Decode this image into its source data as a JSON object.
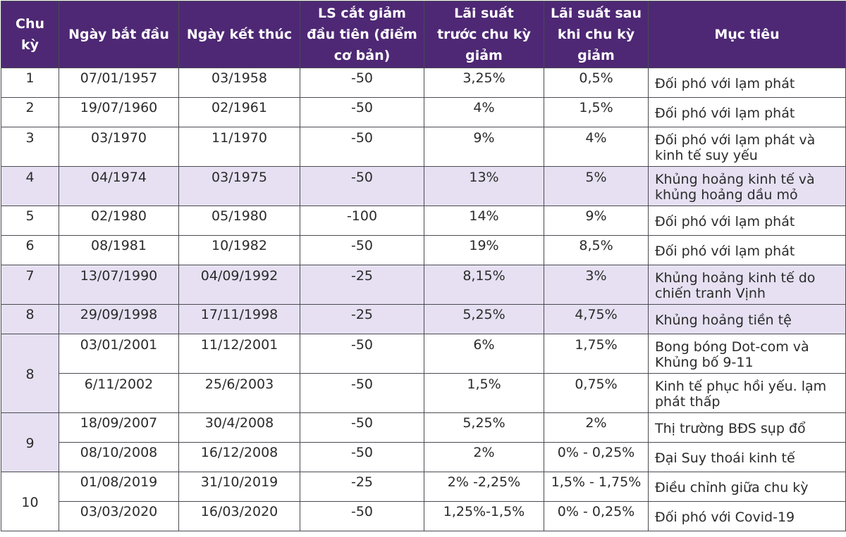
{
  "header": {
    "cycle": "Chu kỳ",
    "start_date": "Ngày bắt đầu",
    "end_date": "Ngày kết thúc",
    "first_cut": "LS cắt giảm đầu tiên (điểm cơ bản)",
    "rate_before": "Lãi suất trước chu kỳ giảm",
    "rate_after": "Lãi suất sau khi chu kỳ giảm",
    "goal": "Mục tiêu"
  },
  "rows": [
    {
      "cycle": "1",
      "start": "07/01/1957",
      "end": "03/1958",
      "cut": "-50",
      "before": "3,25%",
      "after": "0,5%",
      "goal": "Đối phó với lạm phát"
    },
    {
      "cycle": "2",
      "start": "19/07/1960",
      "end": "02/1961",
      "cut": "-50",
      "before": "4%",
      "after": "1,5%",
      "goal": "Đối phó với lạm phát"
    },
    {
      "cycle": "3",
      "start": "03/1970",
      "end": "11/1970",
      "cut": "-50",
      "before": "9%",
      "after": "4%",
      "goal": "Đối phó với lạm phát và kinh tế suy yếu"
    },
    {
      "cycle": "4",
      "start": "04/1974",
      "end": "03/1975",
      "cut": "-50",
      "before": "13%",
      "after": "5%",
      "goal": "Khủng hoảng kinh tế và khủng hoảng dầu mỏ"
    },
    {
      "cycle": "5",
      "start": "02/1980",
      "end": "05/1980",
      "cut": "-100",
      "before": "14%",
      "after": "9%",
      "goal": "Đối phó với lạm phát"
    },
    {
      "cycle": "6",
      "start": "08/1981",
      "end": "10/1982",
      "cut": "-50",
      "before": "19%",
      "after": "8,5%",
      "goal": "Đối phó với lạm phát"
    },
    {
      "cycle": "7",
      "start": "13/07/1990",
      "end": "04/09/1992",
      "cut": "-25",
      "before": "8,15%",
      "after": "3%",
      "goal": "Khủng hoảng kinh tế do chiến tranh Vịnh"
    },
    {
      "cycle": "8",
      "start": "29/09/1998",
      "end": "17/11/1998",
      "cut": "-25",
      "before": "5,25%",
      "after": "4,75%",
      "goal": "Khủng hoảng tiền tệ"
    },
    {
      "cycle": "8",
      "start": "03/01/2001",
      "end": "11/12/2001",
      "cut": "-50",
      "before": "6%",
      "after": "1,75%",
      "goal": "Bong bóng Dot-com và Khủng bố 9-11"
    },
    {
      "cycle": "",
      "start": "6/11/2002",
      "end": "25/6/2003",
      "cut": "-50",
      "before": "1,5%",
      "after": "0,75%",
      "goal": "Kinh tế phục hồi yếu. lạm phát thấp"
    },
    {
      "cycle": "9",
      "start": "18/09/2007",
      "end": "30/4/2008",
      "cut": "-50",
      "before": "5,25%",
      "after": "2%",
      "goal": "Thị trường BĐS sụp đổ"
    },
    {
      "cycle": "",
      "start": "08/10/2008",
      "end": "16/12/2008",
      "cut": "-50",
      "before": "2%",
      "after": "0% - 0,25%",
      "goal": "Đại Suy thoái kinh tế"
    },
    {
      "cycle": "10",
      "start": "01/08/2019",
      "end": "31/10/2019",
      "cut": "-25",
      "before": "2% -2,25%",
      "after": "1,5% - 1,75%",
      "goal": "Điều chỉnh giữa chu kỳ"
    },
    {
      "cycle": "",
      "start": "03/03/2020",
      "end": "16/03/2020",
      "cut": "-50",
      "before": "1,25%-1,5%",
      "after": "0% - 0,25%",
      "goal": "Đối phó với Covid-19"
    }
  ]
}
